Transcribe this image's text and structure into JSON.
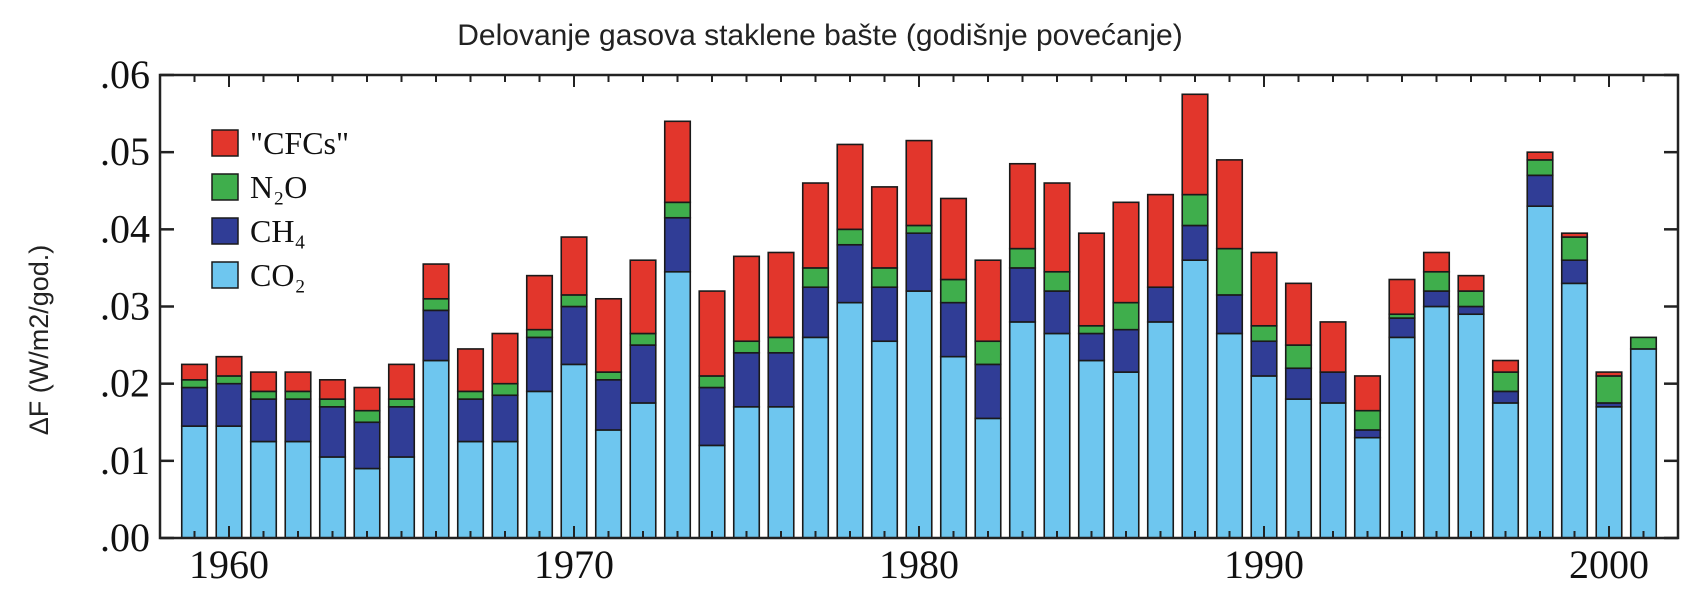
{
  "chart_data": {
    "type": "bar",
    "stacked": true,
    "title": "Delovanje gasova staklene bašte (godišnje povećanje)",
    "xlabel": "",
    "ylabel": "ΔF (W/m2/god.)",
    "ylim": [
      0,
      0.06
    ],
    "xlim": [
      1958,
      2002
    ],
    "y_ticks": [
      ".00",
      ".01",
      ".02",
      ".03",
      ".04",
      ".05",
      ".06"
    ],
    "y_tick_values": [
      0,
      0.01,
      0.02,
      0.03,
      0.04,
      0.05,
      0.06
    ],
    "x_ticks": [
      "1960",
      "1970",
      "1980",
      "1990",
      "2000"
    ],
    "x_tick_values": [
      1960,
      1970,
      1980,
      1990,
      2000
    ],
    "grid": false,
    "legend_position": "top-left",
    "years": [
      1959,
      1960,
      1961,
      1962,
      1963,
      1964,
      1965,
      1966,
      1967,
      1968,
      1969,
      1970,
      1971,
      1972,
      1973,
      1974,
      1975,
      1976,
      1977,
      1978,
      1979,
      1980,
      1981,
      1982,
      1983,
      1984,
      1985,
      1986,
      1987,
      1988,
      1989,
      1990,
      1991,
      1992,
      1993,
      1994,
      1995,
      1996,
      1997,
      1998,
      1999,
      2000,
      2001
    ],
    "series": [
      {
        "name": "CO2",
        "legend_label": "CO₂",
        "color": "#6ec6ef",
        "values": [
          0.0145,
          0.0145,
          0.0125,
          0.0125,
          0.0105,
          0.009,
          0.0105,
          0.023,
          0.0125,
          0.0125,
          0.019,
          0.0225,
          0.014,
          0.0175,
          0.0345,
          0.012,
          0.017,
          0.017,
          0.026,
          0.0305,
          0.0255,
          0.032,
          0.0235,
          0.0155,
          0.028,
          0.0265,
          0.023,
          0.0215,
          0.028,
          0.036,
          0.0265,
          0.021,
          0.018,
          0.0175,
          0.013,
          0.026,
          0.03,
          0.029,
          0.0175,
          0.043,
          0.033,
          0.017,
          0.0245
        ]
      },
      {
        "name": "CH4",
        "legend_label": "CH₄",
        "color": "#303d96",
        "values": [
          0.005,
          0.0055,
          0.0055,
          0.0055,
          0.0065,
          0.006,
          0.0065,
          0.0065,
          0.0055,
          0.006,
          0.007,
          0.0075,
          0.0065,
          0.0075,
          0.007,
          0.0075,
          0.007,
          0.007,
          0.0065,
          0.0075,
          0.007,
          0.0075,
          0.007,
          0.007,
          0.007,
          0.0055,
          0.0035,
          0.0055,
          0.0045,
          0.0045,
          0.005,
          0.0045,
          0.004,
          0.004,
          0.001,
          0.0025,
          0.002,
          0.001,
          0.0015,
          0.004,
          0.003,
          0.0005,
          0.0
        ]
      },
      {
        "name": "N2O",
        "legend_label": "N₂O",
        "color": "#3fae4c",
        "values": [
          0.001,
          0.001,
          0.001,
          0.001,
          0.001,
          0.0015,
          0.001,
          0.0015,
          0.001,
          0.0015,
          0.001,
          0.0015,
          0.001,
          0.0015,
          0.002,
          0.0015,
          0.0015,
          0.002,
          0.0025,
          0.002,
          0.0025,
          0.001,
          0.003,
          0.003,
          0.0025,
          0.0025,
          0.001,
          0.0035,
          0.0,
          0.004,
          0.006,
          0.002,
          0.003,
          0.0,
          0.0025,
          0.0005,
          0.0025,
          0.002,
          0.0025,
          0.002,
          0.003,
          0.0035,
          0.0015
        ]
      },
      {
        "name": "CFCs",
        "legend_label": "\"CFCs\"",
        "color": "#e2362c",
        "values": [
          0.002,
          0.0025,
          0.0025,
          0.0025,
          0.0025,
          0.003,
          0.0045,
          0.0045,
          0.0055,
          0.0065,
          0.007,
          0.0075,
          0.0095,
          0.0095,
          0.0105,
          0.011,
          0.011,
          0.011,
          0.011,
          0.011,
          0.0105,
          0.011,
          0.0105,
          0.0105,
          0.011,
          0.0115,
          0.012,
          0.013,
          0.012,
          0.013,
          0.0115,
          0.0095,
          0.008,
          0.0065,
          0.0045,
          0.0045,
          0.0025,
          0.002,
          0.0015,
          0.001,
          0.0005,
          0.0005,
          0.0
        ]
      }
    ]
  }
}
